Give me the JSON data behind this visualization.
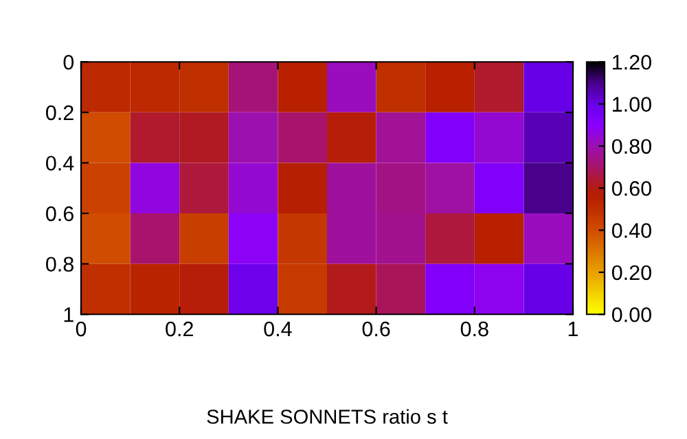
{
  "chart_data": {
    "type": "heatmap",
    "xlabel": "SHAKE SONNETS ratio s t",
    "xlim": [
      0,
      1
    ],
    "ylim": [
      1,
      0
    ],
    "xticks": [
      0,
      0.2,
      0.4,
      0.6,
      0.8,
      1
    ],
    "yticks": [
      0,
      0.2,
      0.4,
      0.6,
      0.8,
      1
    ],
    "cells": [
      [
        0.52,
        0.52,
        0.5,
        0.72,
        0.55,
        0.82,
        0.5,
        0.55,
        0.63,
        1.0
      ],
      [
        0.4,
        0.63,
        0.62,
        0.8,
        0.7,
        0.58,
        0.76,
        0.92,
        0.84,
        1.05
      ],
      [
        0.44,
        0.86,
        0.65,
        0.84,
        0.56,
        0.77,
        0.74,
        0.78,
        0.92,
        1.1
      ],
      [
        0.4,
        0.7,
        0.45,
        0.89,
        0.47,
        0.77,
        0.75,
        0.65,
        0.55,
        0.82
      ],
      [
        0.5,
        0.54,
        0.58,
        0.98,
        0.46,
        0.61,
        0.68,
        0.92,
        0.88,
        1.0
      ]
    ],
    "clim": [
      0,
      1.2
    ],
    "cticks": [
      {
        "value": 0,
        "label": "0.00"
      },
      {
        "value": 0.2,
        "label": "0.20"
      },
      {
        "value": 0.4,
        "label": "0.40"
      },
      {
        "value": 0.6,
        "label": "0.60"
      },
      {
        "value": 0.8,
        "label": "0.80"
      },
      {
        "value": 1.0,
        "label": "1.00"
      },
      {
        "value": 1.2,
        "label": "1.20"
      }
    ],
    "grid": false
  }
}
